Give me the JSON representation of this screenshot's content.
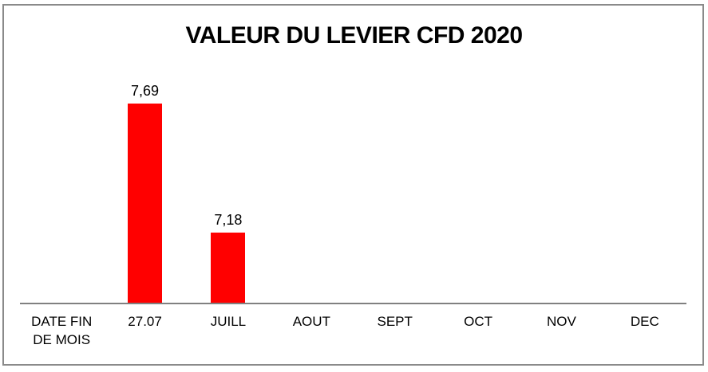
{
  "chart_data": {
    "type": "bar",
    "title": "VALEUR DU LEVIER CFD 2020",
    "categories": [
      "DATE FIN DE MOIS",
      "27.07",
      "JUILL",
      "AOUT",
      "SEPT",
      "OCT",
      "NOV",
      "DEC"
    ],
    "values": [
      null,
      7.69,
      7.18,
      null,
      null,
      null,
      null,
      null
    ],
    "value_labels": [
      "",
      "7,69",
      "7,18",
      "",
      "",
      "",
      "",
      ""
    ],
    "xlabel": "",
    "ylabel": "",
    "ylim": [
      6.9,
      7.8
    ],
    "y_axis_visible": false,
    "grid": false,
    "legend": false,
    "bar_color": "#FF0000",
    "axis_line_color": "#808080",
    "frame_border_color": "#8A8A8A",
    "background_color": "#FFFFFF",
    "text_color": "#000000"
  }
}
